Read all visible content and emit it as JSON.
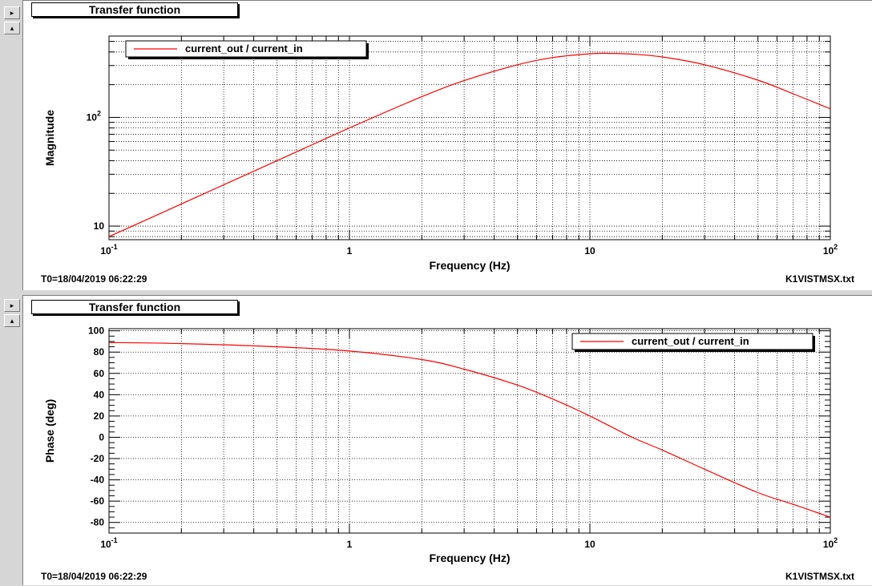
{
  "buttons": [
    {
      "glyph": "▸",
      "name": "expand-button"
    },
    {
      "glyph": "▴",
      "name": "collapse-button"
    }
  ],
  "panels": [
    {
      "title": "Transfer function",
      "footer_left": "T0=18/04/2019 06:22:29",
      "footer_right": "K1VISTMSX.txt",
      "ylabel": "Magnitude",
      "xlabel": "Frequency (Hz)",
      "legend": "current_out / current_in"
    },
    {
      "title": "Transfer function",
      "footer_left": "T0=18/04/2019 06:22:29",
      "footer_right": "K1VISTMSX.txt",
      "ylabel": "Phase (deg)",
      "xlabel": "Frequency (Hz)",
      "legend": "current_out / current_in"
    }
  ],
  "chart_data": [
    {
      "type": "line",
      "title": "Transfer function",
      "xlabel": "Frequency (Hz)",
      "ylabel": "Magnitude",
      "xscale": "log",
      "yscale": "log",
      "xlim": [
        0.1,
        100
      ],
      "ylim": [
        7.5,
        560
      ],
      "grid": true,
      "legend_position": "top-left",
      "series": [
        {
          "name": "current_out / current_in",
          "color": "#ff0000",
          "x": [
            0.1,
            0.2,
            0.5,
            1,
            2,
            3,
            5,
            7,
            10,
            12,
            15,
            20,
            30,
            50,
            70,
            100
          ],
          "y": [
            8,
            16,
            40,
            80,
            155,
            218,
            305,
            355,
            385,
            388,
            382,
            360,
            305,
            220,
            165,
            120
          ]
        }
      ]
    },
    {
      "type": "line",
      "title": "Transfer function",
      "xlabel": "Frequency (Hz)",
      "ylabel": "Phase (deg)",
      "xscale": "log",
      "yscale": "linear",
      "xlim": [
        0.1,
        100
      ],
      "ylim": [
        -90,
        102
      ],
      "yticks": [
        100,
        80,
        60,
        40,
        20,
        0,
        -20,
        -40,
        -60,
        -80
      ],
      "grid": true,
      "legend_position": "top-right",
      "series": [
        {
          "name": "current_out / current_in",
          "color": "#ff0000",
          "x": [
            0.1,
            0.2,
            0.5,
            1,
            2,
            3,
            5,
            7,
            10,
            15,
            20,
            30,
            50,
            70,
            100
          ],
          "y": [
            89,
            88,
            85,
            81,
            73,
            64,
            49,
            36,
            20,
            0,
            -12,
            -30,
            -52,
            -63,
            -75
          ]
        }
      ]
    }
  ]
}
